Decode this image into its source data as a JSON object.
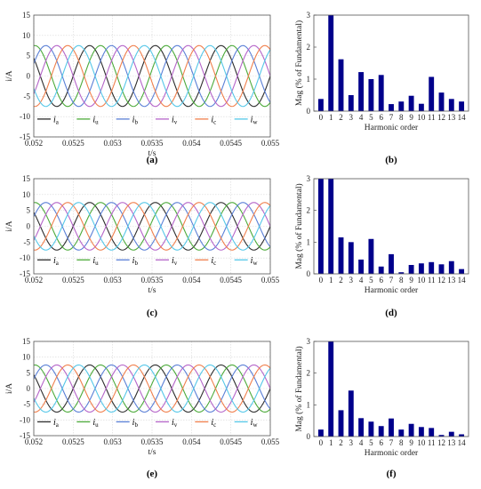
{
  "chart_data": [
    {
      "id": "a",
      "type": "line",
      "caption": "(a)",
      "xlabel": "t/s",
      "ylabel": "i/A",
      "xlim": [
        0.052,
        0.055
      ],
      "ylim": [
        -15,
        15
      ],
      "xticks": [
        "0.052",
        "0.0525",
        "0.053",
        "0.0535",
        "0.054",
        "0.0545",
        "0.055"
      ],
      "yticks": [
        "15",
        "10",
        "5",
        "0",
        "-5",
        "-10",
        "-15"
      ],
      "amplitude": 7.5,
      "frequency_hz": 1200,
      "series": [
        {
          "name": "i",
          "sub": "a",
          "color": "#2d2d2d",
          "phase_deg": 0
        },
        {
          "name": "i",
          "sub": "u",
          "color": "#4caa3a",
          "phase_deg": -60
        },
        {
          "name": "i",
          "sub": "b",
          "color": "#5a7fd6",
          "phase_deg": -120
        },
        {
          "name": "i",
          "sub": "v",
          "color": "#b565c9",
          "phase_deg": -180
        },
        {
          "name": "i",
          "sub": "c",
          "color": "#f07f4c",
          "phase_deg": -240
        },
        {
          "name": "i",
          "sub": "w",
          "color": "#55c7e8",
          "phase_deg": -300
        }
      ]
    },
    {
      "id": "b",
      "type": "bar",
      "caption": "(b)",
      "xlabel": "Harmonic order",
      "ylabel": "Mag (% of Fundamental)",
      "ylim": [
        0,
        3
      ],
      "yticks": [
        "3",
        "2",
        "1",
        "0"
      ],
      "categories": [
        "0",
        "1",
        "2",
        "3",
        "4",
        "5",
        "6",
        "7",
        "8",
        "9",
        "10",
        "11",
        "12",
        "13",
        "14"
      ],
      "values": [
        0.38,
        3.0,
        1.62,
        0.5,
        1.22,
        1.0,
        1.13,
        0.22,
        0.3,
        0.48,
        0.23,
        1.07,
        0.58,
        0.38,
        0.3
      ],
      "color": "#00008b"
    },
    {
      "id": "c",
      "type": "line",
      "caption": "(c)",
      "xlabel": "t/s",
      "ylabel": "i/A",
      "xlim": [
        0.052,
        0.055
      ],
      "ylim": [
        -15,
        15
      ],
      "xticks": [
        "0.052",
        "0.0525",
        "0.053",
        "0.0535",
        "0.054",
        "0.0545",
        "0.055"
      ],
      "yticks": [
        "15",
        "10",
        "5",
        "0",
        "-5",
        "-10",
        "-15"
      ],
      "amplitude": 7.5,
      "frequency_hz": 1200,
      "series": [
        {
          "name": "i",
          "sub": "a",
          "color": "#2d2d2d",
          "phase_deg": 0
        },
        {
          "name": "i",
          "sub": "u",
          "color": "#4caa3a",
          "phase_deg": -60
        },
        {
          "name": "i",
          "sub": "b",
          "color": "#5a7fd6",
          "phase_deg": -120
        },
        {
          "name": "i",
          "sub": "v",
          "color": "#b565c9",
          "phase_deg": -180
        },
        {
          "name": "i",
          "sub": "c",
          "color": "#f07f4c",
          "phase_deg": -240
        },
        {
          "name": "i",
          "sub": "w",
          "color": "#55c7e8",
          "phase_deg": -300
        }
      ]
    },
    {
      "id": "d",
      "type": "bar",
      "caption": "(d)",
      "xlabel": "Harmonic order",
      "ylabel": "Mag (% of Fundamental)",
      "ylim": [
        0,
        3
      ],
      "yticks": [
        "3",
        "2",
        "1",
        "0"
      ],
      "categories": [
        "0",
        "1",
        "2",
        "3",
        "4",
        "5",
        "6",
        "7",
        "8",
        "9",
        "10",
        "11",
        "12",
        "13",
        "14"
      ],
      "values": [
        3.0,
        3.0,
        1.15,
        1.0,
        0.45,
        1.1,
        0.23,
        0.62,
        0.05,
        0.28,
        0.33,
        0.37,
        0.3,
        0.4,
        0.15
      ],
      "color": "#00008b"
    },
    {
      "id": "e",
      "type": "line",
      "caption": "(e)",
      "xlabel": "t/s",
      "ylabel": "i/A",
      "xlim": [
        0.052,
        0.055
      ],
      "ylim": [
        -15,
        15
      ],
      "xticks": [
        "0.052",
        "0.0525",
        "0.053",
        "0.0535",
        "0.054",
        "0.0545",
        "0.055"
      ],
      "yticks": [
        "15",
        "10",
        "5",
        "0",
        "-5",
        "-10",
        "-15"
      ],
      "amplitude": 7.5,
      "frequency_hz": 1200,
      "series": [
        {
          "name": "i",
          "sub": "a",
          "color": "#2d2d2d",
          "phase_deg": 0
        },
        {
          "name": "i",
          "sub": "u",
          "color": "#4caa3a",
          "phase_deg": -60
        },
        {
          "name": "i",
          "sub": "b",
          "color": "#5a7fd6",
          "phase_deg": -120
        },
        {
          "name": "i",
          "sub": "v",
          "color": "#b565c9",
          "phase_deg": -180
        },
        {
          "name": "i",
          "sub": "c",
          "color": "#f07f4c",
          "phase_deg": -240
        },
        {
          "name": "i",
          "sub": "w",
          "color": "#55c7e8",
          "phase_deg": -300
        }
      ]
    },
    {
      "id": "f",
      "type": "bar",
      "caption": "(f)",
      "xlabel": "Harmonic order",
      "ylabel": "Mag (% of Fundamental)",
      "ylim": [
        0,
        3
      ],
      "yticks": [
        "3",
        "2",
        "1",
        "0"
      ],
      "categories": [
        "0",
        "1",
        "2",
        "3",
        "4",
        "5",
        "6",
        "7",
        "8",
        "9",
        "10",
        "11",
        "12",
        "13",
        "14"
      ],
      "values": [
        0.22,
        3.0,
        0.83,
        1.45,
        0.58,
        0.47,
        0.33,
        0.57,
        0.22,
        0.4,
        0.3,
        0.27,
        0.05,
        0.15,
        0.07
      ],
      "color": "#00008b"
    }
  ]
}
